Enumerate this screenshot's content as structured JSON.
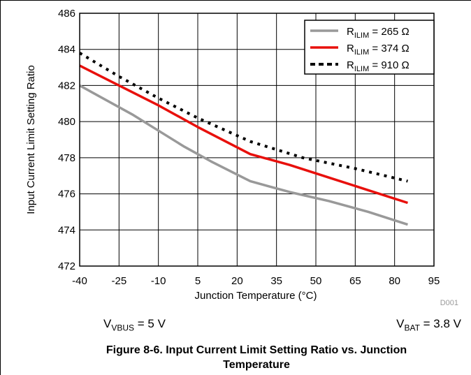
{
  "chart_data": {
    "type": "line",
    "xlabel": "Junction Temperature (°C)",
    "ylabel": "Input Current Limit Setting Ratio",
    "xlim": [
      -40,
      95
    ],
    "ylim": [
      472,
      486
    ],
    "xticks": [
      -40,
      -25,
      -10,
      5,
      20,
      35,
      50,
      65,
      80,
      95
    ],
    "yticks": [
      472,
      474,
      476,
      478,
      480,
      482,
      484,
      486
    ],
    "grid": true,
    "legend_position": "top-right",
    "code": "D001",
    "series": [
      {
        "name": "R_ILIM = 265 Ω",
        "label_main": "R",
        "label_sub": "ILIM",
        "label_rest": " = 265 Ω",
        "color": "#999999",
        "style": "solid",
        "x": [
          -40,
          -20,
          -10,
          0,
          10,
          25,
          40,
          55,
          70,
          85
        ],
        "y": [
          482.0,
          480.4,
          479.5,
          478.6,
          477.8,
          476.7,
          476.1,
          475.6,
          475.0,
          474.3
        ]
      },
      {
        "name": "R_ILIM = 374 Ω",
        "label_main": "R",
        "label_sub": "ILIM",
        "label_rest": " = 374 Ω",
        "color": "#e8100c",
        "style": "solid",
        "x": [
          -40,
          -25,
          -10,
          5,
          25,
          40,
          55,
          70,
          85
        ],
        "y": [
          483.1,
          482.0,
          480.9,
          479.7,
          478.2,
          477.6,
          476.9,
          476.2,
          475.5
        ]
      },
      {
        "name": "R_ILIM = 910 Ω",
        "label_main": "R",
        "label_sub": "ILIM",
        "label_rest": " = 910 Ω",
        "color": "#000000",
        "style": "dotted",
        "x": [
          -40,
          -25,
          -10,
          5,
          25,
          45,
          65,
          85
        ],
        "y": [
          483.8,
          482.5,
          481.3,
          480.2,
          478.9,
          478.0,
          477.4,
          476.7
        ]
      }
    ]
  },
  "conditions": {
    "vbus": {
      "main": "V",
      "sub": "VBUS",
      "rest": " = 5 V"
    },
    "vbat": {
      "main": "V",
      "sub": "BAT",
      "rest": " = 3.8 V"
    }
  },
  "caption": {
    "line1": "Figure 8-6. Input Current Limit Setting Ratio vs. Junction",
    "line2": "Temperature"
  }
}
